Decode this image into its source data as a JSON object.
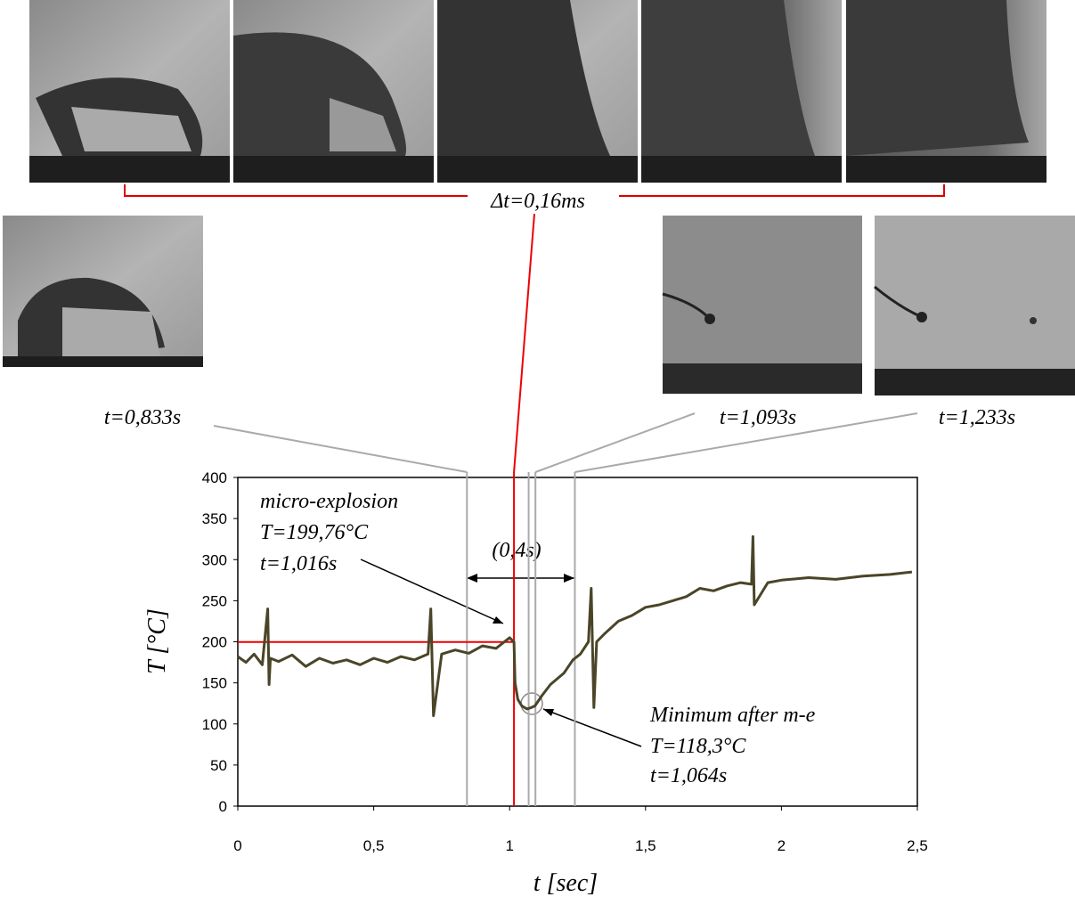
{
  "chart_data": {
    "type": "line",
    "xlabel": "t [sec]",
    "ylabel": "T [°C]",
    "x": [
      0,
      0.03,
      0.06,
      0.09,
      0.11,
      0.115,
      0.12,
      0.15,
      0.2,
      0.25,
      0.3,
      0.35,
      0.4,
      0.45,
      0.5,
      0.55,
      0.6,
      0.65,
      0.7,
      0.71,
      0.72,
      0.75,
      0.8,
      0.85,
      0.9,
      0.95,
      1.0,
      1.016,
      1.02,
      1.03,
      1.045,
      1.064,
      1.08,
      1.093,
      1.12,
      1.15,
      1.2,
      1.233,
      1.26,
      1.29,
      1.3,
      1.31,
      1.32,
      1.35,
      1.4,
      1.45,
      1.5,
      1.55,
      1.6,
      1.65,
      1.7,
      1.75,
      1.8,
      1.85,
      1.89,
      1.895,
      1.9,
      1.95,
      2.0,
      2.1,
      2.2,
      2.3,
      2.4,
      2.48
    ],
    "values": [
      182,
      175,
      185,
      172,
      240,
      148,
      180,
      176,
      184,
      170,
      180,
      174,
      178,
      172,
      180,
      175,
      182,
      178,
      185,
      240,
      110,
      185,
      190,
      186,
      195,
      192,
      205,
      199.76,
      150,
      130,
      122,
      118.3,
      120,
      122,
      135,
      148,
      162,
      178,
      185,
      200,
      265,
      120,
      200,
      210,
      225,
      232,
      242,
      245,
      250,
      255,
      265,
      262,
      268,
      272,
      270,
      328,
      245,
      272,
      275,
      278,
      276,
      280,
      282,
      285
    ],
    "color": "#4a4528",
    "xlim": [
      0,
      2.5
    ],
    "xticks": [
      0,
      {
        "value": 0.5,
        "label": "0,5"
      },
      1,
      {
        "value": 1.5,
        "label": "1,5"
      },
      2,
      {
        "value": 2.5,
        "label": "2,5"
      }
    ],
    "ylim": [
      0,
      400
    ],
    "yticks": [
      0,
      50,
      100,
      150,
      200,
      250,
      300,
      350,
      400
    ],
    "vlines": [
      0.843,
      1.07,
      1.095,
      1.24
    ],
    "event": {
      "t": 1.016,
      "T": 199.76
    },
    "annotations": {
      "dt": "Δt=0,16ms",
      "frames": [
        "t=0,833s",
        "t=1,093s",
        "t=1,233s"
      ],
      "explosion": [
        "micro-explosion",
        "T=199,76°C",
        "t=1,016s"
      ],
      "interval": "(0,4s)",
      "minimum": [
        "Minimum after m-e",
        "T=118,3°C",
        "t=1,064s"
      ]
    }
  }
}
